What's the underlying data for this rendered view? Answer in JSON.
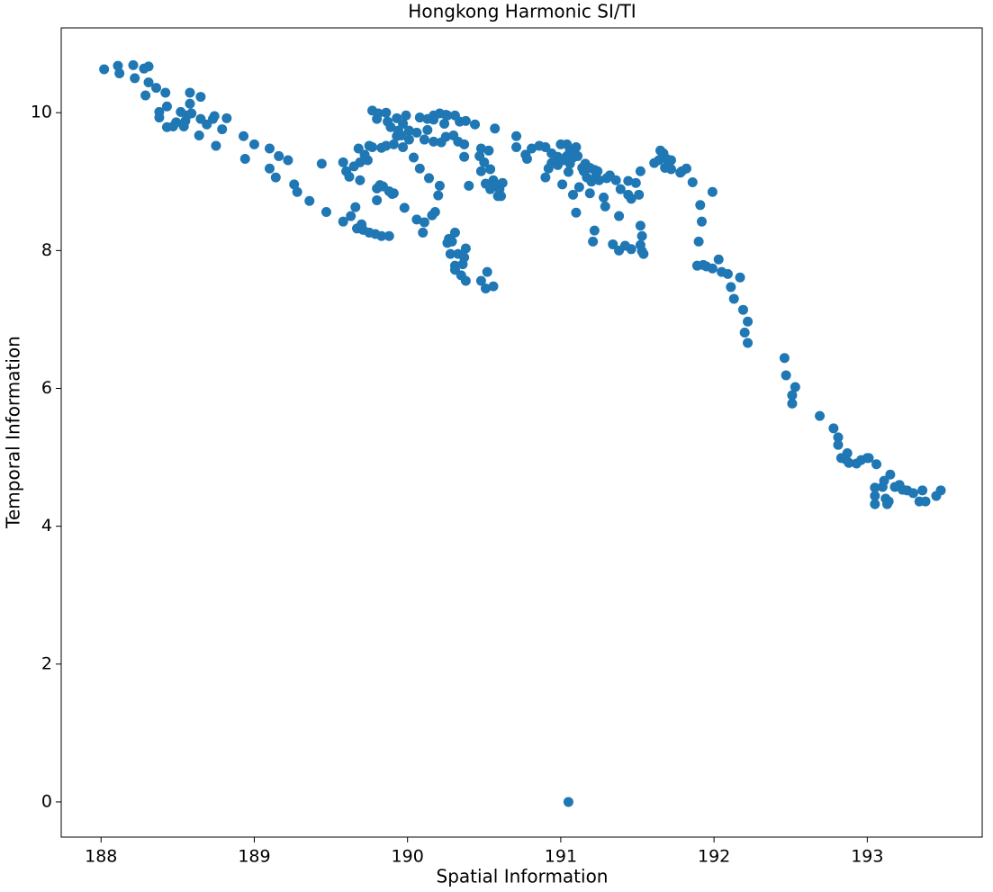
{
  "chart_data": {
    "type": "scatter",
    "title": "Hongkong Harmonic SI/TI",
    "x_label": "Spatial Information",
    "y_label": "Temporal Information",
    "color": "#1f77b4",
    "xlim": [
      187.74,
      193.75
    ],
    "ylim": [
      -0.51,
      11.23
    ],
    "xticks": [
      188,
      189,
      190,
      191,
      192,
      193
    ],
    "yticks": [
      0,
      2,
      4,
      6,
      8,
      10
    ],
    "x": [
      188.02,
      188.11,
      188.12,
      188.21,
      188.22,
      188.28,
      188.31,
      188.31,
      188.29,
      188.36,
      188.42,
      188.38,
      188.38,
      188.43,
      188.43,
      188.47,
      188.49,
      188.52,
      188.55,
      188.56,
      188.58,
      188.58,
      188.54,
      188.59,
      188.65,
      188.65,
      188.64,
      188.69,
      188.73,
      188.74,
      188.75,
      188.79,
      188.82,
      188.93,
      188.94,
      189.0,
      189.1,
      189.1,
      189.16,
      189.14,
      189.22,
      189.26,
      189.28,
      189.36,
      189.44,
      189.47,
      189.58,
      189.58,
      189.6,
      189.62,
      189.63,
      189.65,
      189.66,
      189.67,
      189.69,
      189.69,
      189.71,
      189.7,
      189.68,
      189.72,
      189.75,
      189.74,
      189.75,
      189.77,
      189.79,
      189.77,
      189.8,
      189.81,
      189.8,
      189.8,
      189.82,
      189.83,
      189.83,
      189.84,
      189.86,
      189.87,
      189.86,
      189.88,
      189.88,
      189.89,
      189.9,
      189.91,
      189.91,
      189.93,
      189.93,
      189.94,
      189.96,
      189.97,
      189.98,
      189.97,
      189.99,
      190.01,
      190.01,
      190.04,
      190.06,
      190.08,
      190.08,
      190.06,
      190.1,
      190.11,
      190.11,
      190.13,
      190.13,
      190.14,
      190.16,
      190.17,
      190.17,
      190.17,
      190.18,
      190.2,
      190.21,
      190.22,
      190.21,
      190.24,
      190.25,
      190.26,
      190.25,
      190.26,
      190.27,
      190.28,
      190.29,
      190.3,
      190.31,
      190.31,
      190.31,
      190.31,
      190.33,
      190.33,
      190.35,
      190.34,
      190.36,
      190.37,
      190.37,
      190.37,
      190.38,
      190.38,
      190.4,
      190.38,
      190.44,
      190.47,
      190.48,
      190.48,
      190.48,
      190.5,
      190.51,
      190.52,
      190.51,
      190.53,
      190.54,
      190.54,
      190.56,
      190.56,
      190.57,
      190.57,
      190.59,
      190.6,
      190.62,
      190.61,
      190.71,
      190.71,
      190.77,
      190.78,
      190.81,
      190.86,
      190.9,
      190.9,
      190.92,
      190.94,
      190.94,
      190.98,
      190.98,
      191.0,
      191.01,
      191.02,
      191.04,
      191.04,
      191.05,
      191.06,
      191.06,
      191.08,
      191.08,
      191.1,
      191.1,
      191.11,
      191.12,
      191.14,
      191.15,
      191.16,
      191.17,
      191.19,
      191.19,
      191.2,
      191.21,
      191.22,
      191.22,
      191.23,
      191.24,
      191.25,
      191.28,
      191.29,
      191.3,
      191.32,
      191.34,
      191.36,
      191.38,
      191.38,
      191.39,
      191.42,
      191.44,
      191.44,
      191.46,
      191.46,
      191.49,
      191.51,
      191.52,
      191.52,
      191.53,
      191.52,
      191.54,
      191.53,
      191.61,
      191.64,
      191.65,
      191.67,
      191.68,
      191.69,
      191.72,
      191.72,
      191.78,
      191.79,
      191.82,
      191.86,
      191.89,
      191.91,
      191.9,
      191.92,
      191.93,
      191.95,
      191.99,
      191.99,
      192.03,
      192.05,
      192.09,
      192.11,
      192.13,
      192.17,
      192.19,
      192.2,
      192.22,
      192.22,
      192.46,
      192.47,
      192.51,
      192.51,
      192.53,
      192.69,
      192.78,
      192.81,
      192.81,
      192.83,
      192.86,
      192.87,
      192.88,
      192.93,
      192.96,
      193.0,
      193.01,
      193.06,
      193.05,
      193.05,
      193.05,
      193.1,
      193.11,
      193.12,
      193.13,
      193.14,
      193.15,
      193.18,
      193.21,
      193.23,
      193.26,
      193.3,
      193.34,
      193.36,
      193.38,
      193.45,
      193.48,
      191.05
    ],
    "values": [
      10.63,
      10.68,
      10.57,
      10.69,
      10.5,
      10.64,
      10.67,
      10.44,
      10.25,
      10.36,
      10.29,
      10.01,
      9.93,
      10.09,
      9.79,
      9.8,
      9.86,
      10.01,
      9.88,
      9.96,
      10.29,
      10.13,
      9.8,
      9.99,
      10.23,
      9.91,
      9.67,
      9.83,
      9.91,
      9.95,
      9.52,
      9.76,
      9.92,
      9.66,
      9.33,
      9.54,
      9.48,
      9.19,
      9.37,
      9.06,
      9.31,
      8.96,
      8.85,
      8.72,
      9.26,
      8.56,
      8.42,
      9.28,
      9.15,
      9.07,
      8.5,
      9.22,
      8.63,
      8.32,
      9.28,
      9.02,
      8.3,
      8.38,
      9.48,
      9.39,
      8.26,
      9.31,
      9.52,
      9.5,
      8.24,
      10.03,
      9.91,
      9.99,
      8.9,
      8.73,
      8.95,
      9.49,
      8.21,
      8.93,
      10.0,
      9.87,
      9.52,
      8.21,
      8.86,
      9.79,
      8.82,
      8.83,
      9.54,
      9.92,
      9.66,
      9.74,
      9.67,
      9.5,
      8.62,
      9.84,
      9.96,
      9.74,
      9.61,
      9.35,
      9.71,
      9.93,
      9.19,
      8.45,
      8.26,
      9.61,
      8.41,
      9.75,
      9.91,
      9.05,
      8.51,
      9.9,
      9.58,
      9.96,
      8.56,
      8.8,
      8.94,
      9.57,
      9.99,
      9.84,
      9.97,
      9.96,
      9.65,
      8.11,
      8.17,
      7.95,
      8.13,
      9.67,
      8.26,
      9.96,
      7.78,
      7.72,
      7.95,
      9.58,
      7.64,
      9.87,
      7.8,
      7.9,
      9.54,
      9.36,
      8.03,
      7.56,
      8.94,
      9.88,
      9.83,
      9.37,
      7.56,
      9.15,
      9.48,
      9.28,
      8.97,
      7.69,
      7.45,
      9.45,
      8.89,
      9.18,
      7.48,
      9.02,
      9.77,
      8.95,
      8.79,
      8.89,
      8.98,
      8.79,
      9.66,
      9.5,
      9.39,
      9.33,
      9.48,
      9.52,
      9.5,
      9.06,
      9.19,
      9.41,
      9.27,
      9.36,
      9.24,
      9.54,
      8.96,
      9.31,
      9.37,
      9.54,
      9.14,
      9.26,
      9.45,
      9.35,
      8.81,
      8.55,
      9.5,
      9.37,
      8.92,
      9.2,
      9.15,
      9.26,
      9.06,
      8.83,
      9.2,
      9.0,
      8.13,
      9.17,
      8.29,
      9.07,
      9.15,
      9.02,
      8.77,
      8.64,
      9.05,
      9.09,
      8.09,
      9.02,
      8.0,
      8.5,
      8.89,
      8.07,
      9.01,
      8.81,
      8.02,
      8.75,
      8.98,
      8.81,
      9.15,
      8.36,
      8.21,
      8.08,
      7.95,
      7.99,
      9.27,
      9.31,
      9.45,
      9.41,
      9.2,
      9.33,
      9.31,
      9.18,
      9.13,
      9.15,
      9.19,
      8.99,
      7.78,
      8.66,
      8.13,
      8.42,
      7.79,
      7.77,
      8.85,
      7.74,
      7.87,
      7.69,
      7.66,
      7.47,
      7.3,
      7.61,
      7.14,
      6.81,
      6.66,
      6.97,
      6.44,
      6.19,
      5.9,
      5.78,
      6.02,
      5.6,
      5.42,
      5.29,
      5.18,
      4.99,
      4.97,
      5.06,
      4.92,
      4.91,
      4.96,
      4.99,
      4.99,
      4.9,
      4.56,
      4.44,
      4.32,
      4.57,
      4.66,
      4.4,
      4.32,
      4.36,
      4.75,
      4.57,
      4.6,
      4.53,
      4.52,
      4.48,
      4.36,
      4.52,
      4.36,
      4.44,
      4.52,
      0
    ]
  }
}
